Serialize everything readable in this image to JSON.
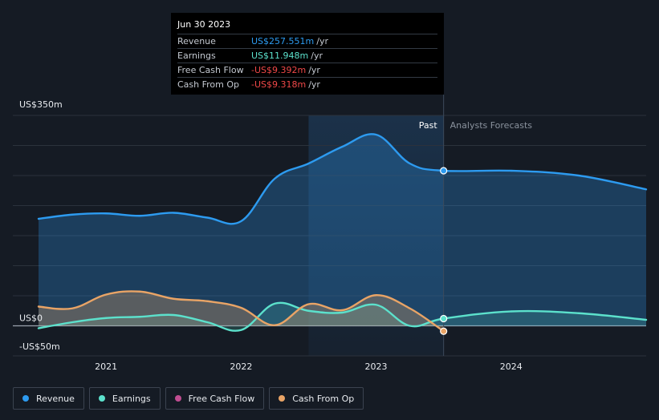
{
  "tooltip": {
    "date": "Jun 30 2023",
    "rows": [
      {
        "label": "Revenue",
        "value": "US$257.551m",
        "unit": "/yr",
        "color": "#2d9bf0"
      },
      {
        "label": "Earnings",
        "value": "US$11.948m",
        "unit": "/yr",
        "color": "#5ce1cc"
      },
      {
        "label": "Free Cash Flow",
        "value": "-US$9.392m",
        "unit": "/yr",
        "color": "#f04848"
      },
      {
        "label": "Cash From Op",
        "value": "-US$9.318m",
        "unit": "/yr",
        "color": "#f04848"
      }
    ]
  },
  "chart_data": {
    "type": "area",
    "ylim": [
      -50,
      350
    ],
    "y_tick_labels": [
      {
        "value": 350,
        "label": "US$350m"
      },
      {
        "value": 0,
        "label": "US$0"
      },
      {
        "value": -50,
        "label": "-US$50m"
      }
    ],
    "x_ticks": [
      {
        "x": 2021.0,
        "label": "2021"
      },
      {
        "x": 2022.0,
        "label": "2022"
      },
      {
        "x": 2023.0,
        "label": "2023"
      },
      {
        "x": 2024.0,
        "label": "2024"
      }
    ],
    "xlim": [
      2020.5,
      2025.0
    ],
    "past_label": "Past",
    "forecast_label": "Analysts Forecasts",
    "past_end": 2023.5,
    "highlight_start": 2022.5,
    "series": [
      {
        "name": "Revenue",
        "color": "#2d9bf0",
        "fill": true,
        "x": [
          2020.5,
          2020.75,
          2021.0,
          2021.25,
          2021.5,
          2021.75,
          2022.0,
          2022.25,
          2022.5,
          2022.75,
          2023.0,
          2023.25,
          2023.5,
          2024.0,
          2024.5,
          2025.0
        ],
        "y": [
          178,
          185,
          187,
          183,
          188,
          180,
          174,
          245,
          270,
          298,
          318,
          270,
          258,
          258,
          250,
          227
        ]
      },
      {
        "name": "Earnings",
        "color": "#5ce1cc",
        "fill": true,
        "x": [
          2020.5,
          2020.75,
          2021.0,
          2021.25,
          2021.5,
          2021.75,
          2022.0,
          2022.25,
          2022.5,
          2022.75,
          2023.0,
          2023.25,
          2023.5,
          2024.0,
          2024.5,
          2025.0
        ],
        "y": [
          -4,
          6,
          13,
          15,
          18,
          6,
          -7,
          37,
          25,
          22,
          35,
          0,
          12,
          24,
          21,
          10
        ]
      },
      {
        "name": "Free Cash Flow",
        "color": "#c04d91",
        "fill": false,
        "x": [],
        "y": []
      },
      {
        "name": "Cash From Op",
        "color": "#e9a466",
        "fill": true,
        "x": [
          2020.5,
          2020.75,
          2021.0,
          2021.25,
          2021.5,
          2021.75,
          2022.0,
          2022.25,
          2022.5,
          2022.75,
          2023.0,
          2023.25,
          2023.5
        ],
        "y": [
          32,
          29,
          52,
          57,
          45,
          41,
          30,
          1,
          36,
          26,
          51,
          29,
          -9
        ]
      }
    ],
    "markers": [
      {
        "series": "Revenue",
        "x": 2023.5,
        "y": 258
      },
      {
        "series": "Earnings",
        "x": 2023.5,
        "y": 12
      },
      {
        "series": "Cash From Op",
        "x": 2023.5,
        "y": -9
      }
    ]
  },
  "legend": [
    {
      "label": "Revenue",
      "color": "#2d9bf0"
    },
    {
      "label": "Earnings",
      "color": "#5ce1cc"
    },
    {
      "label": "Free Cash Flow",
      "color": "#c04d91"
    },
    {
      "label": "Cash From Op",
      "color": "#e9a466"
    }
  ]
}
